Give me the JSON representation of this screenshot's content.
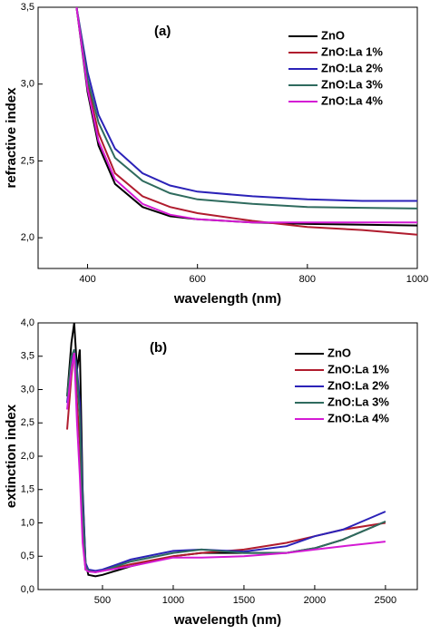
{
  "chart_data": [
    {
      "type": "line",
      "annotation": "(a)",
      "xlabel": "wavelength (nm)",
      "ylabel": "refractive index",
      "x": [
        380,
        400,
        420,
        450,
        500,
        550,
        600,
        700,
        800,
        900,
        1000
      ],
      "series": [
        {
          "name": "ZnO",
          "color": "#000000",
          "values": [
            3.5,
            2.95,
            2.6,
            2.35,
            2.2,
            2.14,
            2.12,
            2.1,
            2.09,
            2.085,
            2.08
          ]
        },
        {
          "name": "ZnO:La 1%",
          "color": "#b01c2e",
          "values": [
            3.5,
            3.0,
            2.68,
            2.42,
            2.27,
            2.2,
            2.16,
            2.11,
            2.07,
            2.05,
            2.02
          ]
        },
        {
          "name": "ZnO:La 2%",
          "color": "#2b22b8",
          "values": [
            3.5,
            3.08,
            2.8,
            2.58,
            2.42,
            2.34,
            2.3,
            2.27,
            2.25,
            2.24,
            2.24
          ]
        },
        {
          "name": "ZnO:La 3%",
          "color": "#2f6b5e",
          "values": [
            3.5,
            3.03,
            2.75,
            2.52,
            2.37,
            2.29,
            2.25,
            2.22,
            2.2,
            2.195,
            2.19
          ]
        },
        {
          "name": "ZnO:La 4%",
          "color": "#d41ad4",
          "values": [
            3.5,
            2.97,
            2.63,
            2.38,
            2.22,
            2.15,
            2.12,
            2.1,
            2.1,
            2.1,
            2.1
          ]
        }
      ],
      "xlim": [
        310,
        1000
      ],
      "xticks": [
        400,
        600,
        800,
        1000
      ],
      "ylim": [
        1.8,
        3.5
      ],
      "yticks": [
        {
          "value": 2.0,
          "label": "2,0"
        },
        {
          "value": 2.5,
          "label": "2,5"
        },
        {
          "value": 3.0,
          "label": "3,0"
        },
        {
          "value": 3.5,
          "label": "3,5"
        }
      ]
    },
    {
      "type": "line",
      "annotation": "(b)",
      "xlabel": "wavelength (nm)",
      "ylabel": "extinction index",
      "x": [
        250,
        280,
        300,
        320,
        340,
        360,
        380,
        400,
        450,
        500,
        700,
        1000,
        1200,
        1500,
        1800,
        2000,
        2200,
        2500
      ],
      "series": [
        {
          "name": "ZnO",
          "color": "#000000",
          "values": [
            2.9,
            3.7,
            4.0,
            3.3,
            3.6,
            1.5,
            0.4,
            0.22,
            0.2,
            0.22,
            0.35,
            0.5,
            0.55,
            0.55,
            0.55,
            0.62,
            0.75,
            1.02
          ]
        },
        {
          "name": "ZnO:La 1%",
          "color": "#b01c2e",
          "values": [
            2.4,
            3.2,
            3.6,
            2.8,
            2.2,
            0.8,
            0.3,
            0.28,
            0.27,
            0.28,
            0.38,
            0.5,
            0.55,
            0.6,
            0.7,
            0.8,
            0.9,
            1.0
          ]
        },
        {
          "name": "ZnO:La 2%",
          "color": "#2b22b8",
          "values": [
            2.8,
            3.4,
            3.6,
            3.3,
            2.8,
            1.4,
            0.4,
            0.3,
            0.28,
            0.3,
            0.45,
            0.58,
            0.6,
            0.57,
            0.65,
            0.8,
            0.9,
            1.17
          ]
        },
        {
          "name": "ZnO:La 3%",
          "color": "#2f6b5e",
          "values": [
            2.9,
            3.5,
            3.6,
            3.2,
            2.6,
            1.2,
            0.35,
            0.28,
            0.26,
            0.28,
            0.42,
            0.55,
            0.6,
            0.55,
            0.55,
            0.62,
            0.75,
            1.02
          ]
        },
        {
          "name": "ZnO:La 4%",
          "color": "#d41ad4",
          "values": [
            2.7,
            3.3,
            3.55,
            2.5,
            1.7,
            0.7,
            0.3,
            0.27,
            0.26,
            0.28,
            0.35,
            0.48,
            0.48,
            0.5,
            0.55,
            0.6,
            0.65,
            0.72
          ]
        }
      ],
      "xlim": [
        45,
        2725
      ],
      "xticks": [
        500,
        1000,
        1500,
        2000,
        2500
      ],
      "ylim": [
        0,
        4
      ],
      "yticks": [
        {
          "value": 0,
          "label": "0,0"
        },
        {
          "value": 0.5,
          "label": "0,5"
        },
        {
          "value": 1.0,
          "label": "1,0"
        },
        {
          "value": 1.5,
          "label": "1,5"
        },
        {
          "value": 2.0,
          "label": "2,0"
        },
        {
          "value": 2.5,
          "label": "2,5"
        },
        {
          "value": 3.0,
          "label": "3,0"
        },
        {
          "value": 3.5,
          "label": "3,5"
        },
        {
          "value": 4.0,
          "label": "4,0"
        }
      ]
    }
  ]
}
